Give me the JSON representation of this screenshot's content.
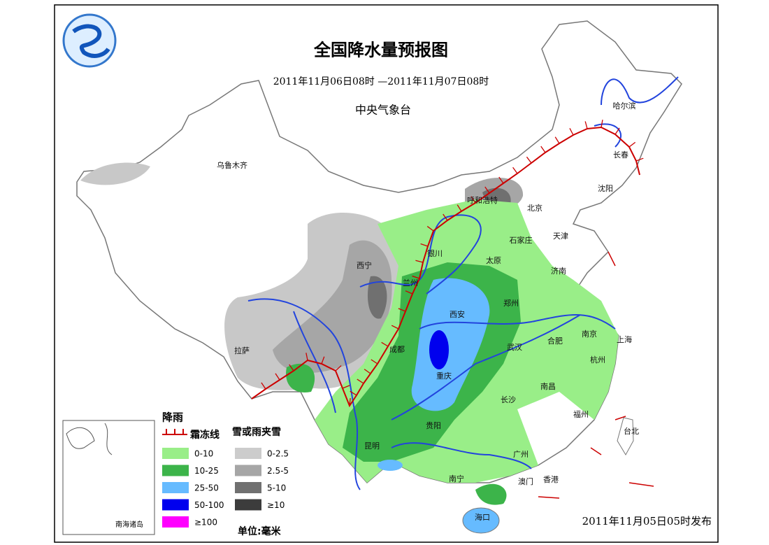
{
  "header": {
    "title": "全国降水量预报图",
    "period": "2011年11月06日08时 —2011年11月07日08时",
    "agency": "中央气象台"
  },
  "cities": [
    "乌鲁木齐",
    "哈尔滨",
    "长春",
    "沈阳",
    "呼和浩特",
    "北京",
    "天津",
    "石家庄",
    "银川",
    "太原",
    "西宁",
    "济南",
    "兰州",
    "郑州",
    "西安",
    "南京",
    "上海",
    "合肥",
    "拉萨",
    "成都",
    "武汉",
    "杭州",
    "重庆",
    "南昌",
    "长沙",
    "福州",
    "贵阳",
    "台北",
    "昆明",
    "广州",
    "南宁",
    "澳门",
    "香港",
    "海口"
  ],
  "legend": {
    "rain_title": "降雨",
    "frost_line": "霜冻线",
    "snow_title": "雪或雨夹雪",
    "rain": [
      {
        "label": "0-10",
        "color": "#99ee88"
      },
      {
        "label": "10-25",
        "color": "#3cb44a"
      },
      {
        "label": "25-50",
        "color": "#66bbff"
      },
      {
        "label": "50-100",
        "color": "#0000ee"
      },
      {
        "label": "≥100",
        "color": "#ff00ff"
      }
    ],
    "snow": [
      {
        "label": "0-2.5",
        "color": "#cccccc"
      },
      {
        "label": "2.5-5",
        "color": "#a6a6a6"
      },
      {
        "label": "5-10",
        "color": "#707070"
      },
      {
        "label": "≥10",
        "color": "#3c3c3c"
      }
    ],
    "unit": "单位:毫米"
  },
  "inset_label": "南海诸岛",
  "issued": "2011年11月05日05时发布"
}
